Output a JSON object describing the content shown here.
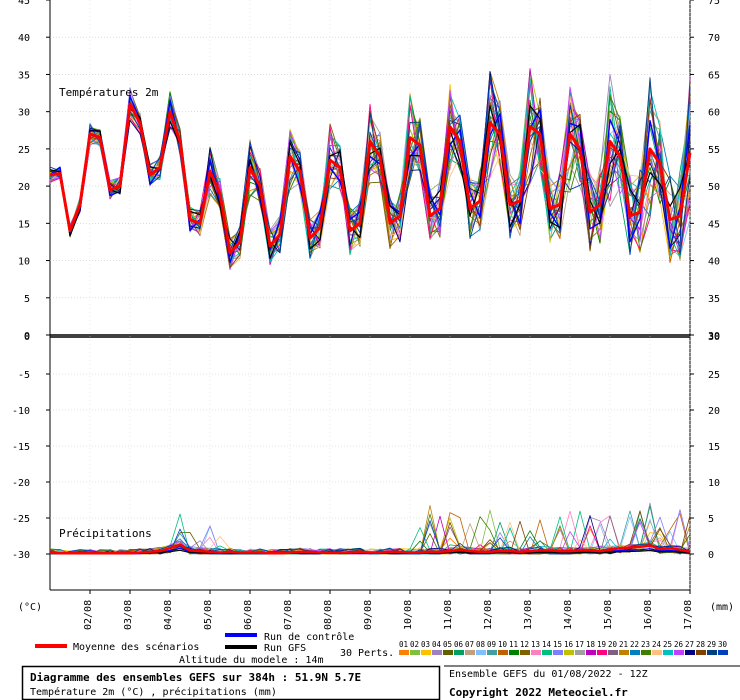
{
  "chart_data": {
    "type": "line",
    "panels": [
      {
        "name": "temperature",
        "label": "Températures 2m",
        "ylim": [
          0,
          45
        ],
        "left_ticks": [
          "45",
          "40",
          "35",
          "30",
          "25",
          "20",
          "15",
          "10",
          "5",
          "0"
        ],
        "right_ticks": [
          "75",
          "70",
          "65",
          "60",
          "55",
          "50",
          "45",
          "40",
          "35",
          "30"
        ]
      },
      {
        "name": "precipitation",
        "label": "Précipitations",
        "ylim": [
          -35,
          0
        ],
        "left_ticks": [
          "-5",
          "-10",
          "-15",
          "-20",
          "-25",
          "-30"
        ],
        "right_ticks": [
          "25",
          "20",
          "15",
          "10",
          "5",
          "0"
        ]
      }
    ],
    "x_labels": [
      "02/08",
      "03/08",
      "04/08",
      "05/08",
      "06/08",
      "07/08",
      "08/08",
      "09/08",
      "10/08",
      "11/08",
      "12/08",
      "13/08",
      "14/08",
      "15/08",
      "16/08",
      "17/08"
    ],
    "series": [
      {
        "name": "Moyenne des scénarios",
        "color": "#ff0000",
        "temp": [
          21.5,
          21.7,
          14.0,
          17.5,
          27.0,
          26.5,
          19.5,
          20.0,
          31.0,
          28.5,
          21.5,
          22.5,
          30.0,
          26.0,
          15.5,
          15.0,
          22.0,
          19.0,
          11.0,
          12.5,
          22.5,
          20.0,
          12.0,
          13.5,
          24.0,
          22.0,
          13.0,
          14.5,
          23.5,
          22.5,
          14.0,
          15.0,
          26.0,
          24.0,
          15.0,
          16.0,
          26.5,
          25.5,
          16.0,
          17.0,
          28.0,
          26.0,
          17.0,
          18.0,
          28.5,
          27.0,
          17.5,
          18.0,
          28.0,
          27.0,
          17.0,
          17.5,
          27.0,
          25.0,
          16.5,
          17.5,
          26.0,
          24.0,
          16.0,
          16.5,
          25.0,
          23.0,
          15.5,
          16.0,
          24.5
        ],
        "precip": [
          0.2,
          0.1,
          0.1,
          0.1,
          0.1,
          0.1,
          0.1,
          0.1,
          0.1,
          0.2,
          0.3,
          0.4,
          0.8,
          1.3,
          0.5,
          0.4,
          0.3,
          0.2,
          0.3,
          0.2,
          0.2,
          0.2,
          0.1,
          0.1,
          0.2,
          0.3,
          0.3,
          0.2,
          0.2,
          0.2,
          0.2,
          0.3,
          0.2,
          0.2,
          0.3,
          0.3,
          0.2,
          0.2,
          0.3,
          0.3,
          0.4,
          0.6,
          0.4,
          0.3,
          0.3,
          0.4,
          0.4,
          0.3,
          0.4,
          0.5,
          0.5,
          0.4,
          0.4,
          0.5,
          0.5,
          0.4,
          0.6,
          0.8,
          0.9,
          1.0,
          1.2,
          0.7,
          0.8,
          0.6,
          0.3
        ]
      },
      {
        "name": "Run de contrôle",
        "color": "#0000ff"
      },
      {
        "name": "Run GFS",
        "color": "#000000"
      }
    ],
    "perturbations": {
      "label": "30 Perts.",
      "numbers": [
        "01",
        "02",
        "03",
        "04",
        "05",
        "06",
        "07",
        "08",
        "09",
        "10",
        "11",
        "12",
        "13",
        "14",
        "15",
        "16",
        "17",
        "18",
        "19",
        "20",
        "21",
        "22",
        "23",
        "24",
        "25",
        "26",
        "27",
        "28",
        "29",
        "30"
      ],
      "colors": [
        "#ff8000",
        "#80c040",
        "#ffc000",
        "#a080c0",
        "#606000",
        "#00a060",
        "#c0a080",
        "#80c0ff",
        "#40a0a0",
        "#c06000",
        "#008000",
        "#806000",
        "#ff80c0",
        "#00c080",
        "#8080ff",
        "#c0c000",
        "#a0a0a0",
        "#c000c0",
        "#ff0080",
        "#806080",
        "#c08000",
        "#0080c0",
        "#408000",
        "#ffc080",
        "#00c0c0",
        "#c040ff",
        "#000080",
        "#804000",
        "#004080",
        "#0040c0"
      ]
    }
  },
  "unit_left": "(°C)",
  "unit_right": "(mm)",
  "legend": {
    "mean_label": "Moyenne des scénarios",
    "control_label": "Run de contrôle",
    "gfs_label": "Run GFS",
    "altitude": "Altitude du modele : 14m"
  },
  "footer": {
    "title": "Diagramme des ensembles GEFS sur 384h : 51.9N 5.7E",
    "subtitle": "Température 2m (°C) , précipitations (mm)",
    "run_info": "Ensemble GEFS du 01/08/2022 - 12Z",
    "copyright": "Copyright 2022 Meteociel.fr"
  }
}
